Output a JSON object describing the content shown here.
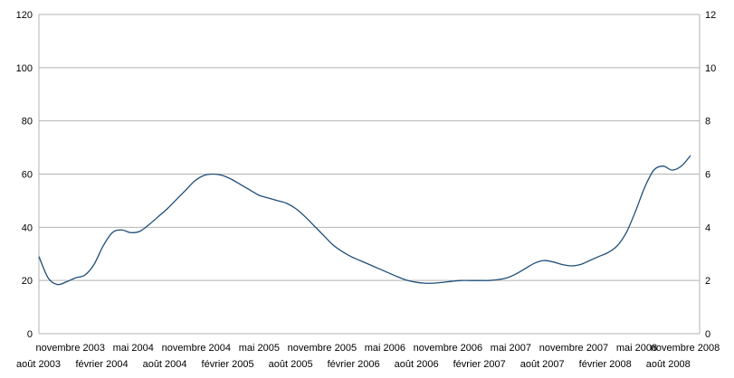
{
  "chart_data": {
    "type": "line",
    "title": "",
    "xlabel": "",
    "ylabel": "",
    "grid": true,
    "legend": "none",
    "ylim": [
      0,
      120
    ],
    "y2lim": [
      0,
      12
    ],
    "yticks": [
      "0",
      "20",
      "40",
      "60",
      "80",
      "100",
      "120"
    ],
    "y2ticks": [
      "0",
      "2",
      "4",
      "6",
      "8",
      "10",
      "12"
    ],
    "xticks": [
      "août 2003",
      "novembre 2003",
      "février 2004",
      "mai 2004",
      "août 2004",
      "novembre 2004",
      "février 2005",
      "mai 2005",
      "août 2005",
      "novembre 2005",
      "février 2006",
      "mai 2006",
      "août 2006",
      "novembre 2006",
      "février 2007",
      "mai 2007",
      "août 2007",
      "novembre 2007",
      "février 2008",
      "mai 2008",
      "août 2008",
      "novembre 2008"
    ],
    "series": [
      {
        "color": "#1f4e79",
        "axis": "left",
        "values": [
          29,
          21,
          18.5,
          19.5,
          21,
          22,
          26,
          33,
          38,
          39,
          38,
          38.5,
          41,
          44,
          47,
          50.5,
          54,
          57.5,
          59.5,
          60,
          59.5,
          58,
          56,
          54,
          52,
          51,
          50,
          49,
          47,
          44,
          40.5,
          37,
          33.5,
          31,
          29,
          27.5,
          26,
          24.5,
          23,
          21.5,
          20.2,
          19.4,
          19,
          19,
          19.3,
          19.7,
          20,
          20,
          20,
          20,
          20.3,
          21,
          22.5,
          24.5,
          26.5,
          27.5,
          27,
          26,
          25.5,
          26,
          27.5,
          29,
          30.5,
          33,
          38,
          46,
          55,
          61.5,
          63,
          61.5,
          63,
          67
        ]
      }
    ]
  }
}
